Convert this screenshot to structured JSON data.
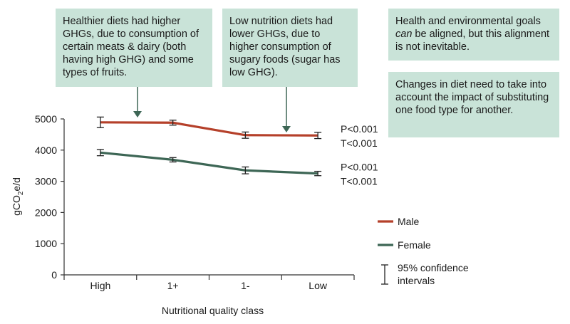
{
  "callouts": {
    "healthier": "Healthier diets had higher GHGs, due to consumption of certain meats & dairy (both having high GHG) and some types of fruits.",
    "low_nutrition": "Low nutrition diets had lower GHGs, due to higher consumption of sugary foods (sugar has low GHG).",
    "goals_prefix": "Health and environmental goals ",
    "goals_emph": "can",
    "goals_suffix": " be aligned, but this alignment is not inevitable.",
    "changes": "Changes in diet need to take into account the impact of substituting one food type for another."
  },
  "colors": {
    "male": "#b5402a",
    "female": "#3d6655",
    "callout_bg": "#c9e3d8",
    "arrow": "#3d6655"
  },
  "chart_data": {
    "type": "line",
    "xlabel": "Nutritional quality class",
    "ylabel_main": "gCO",
    "ylabel_sub": "2",
    "ylabel_tail": "e/d",
    "categories": [
      "High",
      "1+",
      "1-",
      "Low"
    ],
    "ylim": [
      0,
      5000
    ],
    "yticks": [
      "0",
      "1000",
      "2000",
      "3000",
      "4000",
      "5000"
    ],
    "series": [
      {
        "name": "Male",
        "key": "male",
        "values": [
          4890,
          4880,
          4480,
          4470
        ],
        "ci_low": [
          4720,
          4800,
          4380,
          4370
        ],
        "ci_high": [
          5060,
          4960,
          4580,
          4570
        ],
        "stat_p": "P<0.001",
        "stat_t": "T<0.001"
      },
      {
        "name": "Female",
        "key": "female",
        "values": [
          3920,
          3690,
          3350,
          3250
        ],
        "ci_low": [
          3820,
          3620,
          3240,
          3180
        ],
        "ci_high": [
          4020,
          3760,
          3460,
          3320
        ],
        "stat_p": "P<0.001",
        "stat_t": "T<0.001"
      }
    ],
    "ci_legend_line1": "95% confidence",
    "ci_legend_line2": "intervals"
  }
}
